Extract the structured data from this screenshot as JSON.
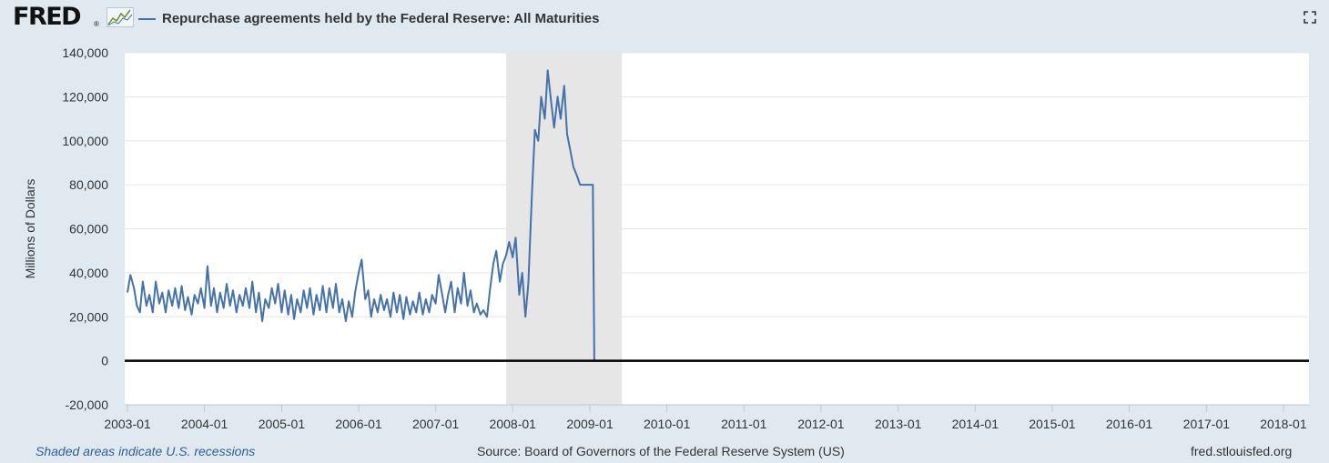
{
  "header": {
    "logo_text": "FRED",
    "logo_mark": "®",
    "logo_icon": "sparkline-icon",
    "title": "Repurchase agreements held by the Federal Reserve: All Maturities",
    "fullscreen_icon": "fullscreen-icon"
  },
  "footer": {
    "recession_note": "Shaded areas indicate U.S. recessions",
    "source": "Source: Board of Governors of the Federal Reserve System (US)",
    "site": "fred.stlouisfed.org"
  },
  "chart_data": {
    "type": "line",
    "title": "Repurchase agreements held by the Federal Reserve: All Maturities",
    "xlabel": "",
    "ylabel": "Millions of Dollars",
    "ylim": [
      -20000,
      140000
    ],
    "xlim": [
      "2002-12-19",
      "2018-05-02"
    ],
    "yticks": [
      -20000,
      0,
      20000,
      40000,
      60000,
      80000,
      100000,
      120000,
      140000
    ],
    "ytick_labels": [
      "-20,000",
      "0",
      "20,000",
      "40,000",
      "60,000",
      "80,000",
      "100,000",
      "120,000",
      "140,000"
    ],
    "xtick_labels": [
      "2003-01",
      "2004-01",
      "2005-01",
      "2006-01",
      "2007-01",
      "2008-01",
      "2009-01",
      "2010-01",
      "2011-01",
      "2012-01",
      "2013-01",
      "2014-01",
      "2015-01",
      "2016-01",
      "2017-01",
      "2018-01"
    ],
    "grid": true,
    "series_color": "#4572a7",
    "zero_line_color": "#000000",
    "recession_color": "#e6e6e6",
    "recessions": [
      {
        "start": "2007-12-01",
        "end": "2009-06-01"
      }
    ],
    "series": [
      {
        "name": "Repurchase agreements held by the Federal Reserve: All Maturities",
        "x": [
          "2003-01-01",
          "2003-01-15",
          "2003-02-01",
          "2003-02-15",
          "2003-03-01",
          "2003-03-15",
          "2003-04-01",
          "2003-04-15",
          "2003-05-01",
          "2003-05-15",
          "2003-06-01",
          "2003-06-15",
          "2003-07-01",
          "2003-07-15",
          "2003-08-01",
          "2003-08-15",
          "2003-09-01",
          "2003-09-15",
          "2003-10-01",
          "2003-10-15",
          "2003-11-01",
          "2003-11-15",
          "2003-12-01",
          "2003-12-15",
          "2004-01-01",
          "2004-01-15",
          "2004-02-01",
          "2004-02-15",
          "2004-03-01",
          "2004-03-15",
          "2004-04-01",
          "2004-04-15",
          "2004-05-01",
          "2004-05-15",
          "2004-06-01",
          "2004-06-15",
          "2004-07-01",
          "2004-07-15",
          "2004-08-01",
          "2004-08-15",
          "2004-09-01",
          "2004-09-15",
          "2004-10-01",
          "2004-10-15",
          "2004-11-01",
          "2004-11-15",
          "2004-12-01",
          "2004-12-15",
          "2005-01-01",
          "2005-01-15",
          "2005-02-01",
          "2005-02-15",
          "2005-03-01",
          "2005-03-15",
          "2005-04-01",
          "2005-04-15",
          "2005-05-01",
          "2005-05-15",
          "2005-06-01",
          "2005-06-15",
          "2005-07-01",
          "2005-07-15",
          "2005-08-01",
          "2005-08-15",
          "2005-09-01",
          "2005-09-15",
          "2005-10-01",
          "2005-10-15",
          "2005-11-01",
          "2005-11-15",
          "2005-12-01",
          "2005-12-15",
          "2006-01-01",
          "2006-01-15",
          "2006-02-01",
          "2006-02-15",
          "2006-03-01",
          "2006-03-15",
          "2006-04-01",
          "2006-04-15",
          "2006-05-01",
          "2006-05-15",
          "2006-06-01",
          "2006-06-15",
          "2006-07-01",
          "2006-07-15",
          "2006-08-01",
          "2006-08-15",
          "2006-09-01",
          "2006-09-15",
          "2006-10-01",
          "2006-10-15",
          "2006-11-01",
          "2006-11-15",
          "2006-12-01",
          "2006-12-15",
          "2007-01-01",
          "2007-01-15",
          "2007-02-01",
          "2007-02-15",
          "2007-03-01",
          "2007-03-15",
          "2007-04-01",
          "2007-04-15",
          "2007-05-01",
          "2007-05-15",
          "2007-06-01",
          "2007-06-15",
          "2007-07-01",
          "2007-07-15",
          "2007-08-01",
          "2007-08-15",
          "2007-09-01",
          "2007-09-15",
          "2007-10-01",
          "2007-10-15",
          "2007-11-01",
          "2007-11-15",
          "2007-12-01",
          "2007-12-15",
          "2008-01-01",
          "2008-01-15",
          "2008-02-01",
          "2008-02-15",
          "2008-03-01",
          "2008-03-15",
          "2008-04-01",
          "2008-04-15",
          "2008-05-01",
          "2008-05-15",
          "2008-06-01",
          "2008-06-15",
          "2008-07-01",
          "2008-07-15",
          "2008-08-01",
          "2008-08-15",
          "2008-09-01",
          "2008-09-15",
          "2008-10-01",
          "2008-10-15",
          "2008-11-01",
          "2008-11-15",
          "2008-12-01",
          "2008-12-15",
          "2009-01-01",
          "2009-01-15",
          "2009-01-22",
          "2018-04-25"
        ],
        "values": [
          31000,
          39000,
          33000,
          25000,
          22000,
          36000,
          25000,
          30000,
          22000,
          36000,
          26000,
          31000,
          22000,
          32000,
          25000,
          33000,
          24000,
          34000,
          23000,
          29000,
          21000,
          30000,
          26000,
          33000,
          24000,
          43000,
          25000,
          33000,
          22000,
          31000,
          24000,
          35000,
          25000,
          32000,
          22000,
          30000,
          25000,
          33000,
          24000,
          36000,
          22000,
          31000,
          18000,
          28000,
          24000,
          33000,
          26000,
          35000,
          22000,
          32000,
          21000,
          30000,
          19000,
          28000,
          22000,
          32000,
          24000,
          33000,
          21000,
          30000,
          23000,
          34000,
          22000,
          33000,
          24000,
          35000,
          22000,
          28000,
          18000,
          27000,
          20000,
          31000,
          40000,
          46000,
          28000,
          32000,
          20000,
          28000,
          22000,
          30000,
          23000,
          28000,
          20000,
          31000,
          22000,
          30000,
          19000,
          29000,
          21000,
          27000,
          22000,
          31000,
          21000,
          28000,
          22000,
          30000,
          26000,
          39000,
          30000,
          22000,
          30000,
          36000,
          22000,
          33000,
          26000,
          40000,
          25000,
          32000,
          22000,
          26000,
          21000,
          23000,
          20000,
          32000,
          44000,
          50000,
          36000,
          44000,
          48000,
          54000,
          47000,
          56000,
          30000,
          40000,
          20000,
          35000,
          75000,
          105000,
          100000,
          120000,
          110000,
          132000,
          118000,
          106000,
          120000,
          110000,
          125000,
          103000,
          95000,
          88000,
          84000,
          80000,
          80000,
          80000,
          80000,
          80000,
          0,
          0
        ]
      }
    ]
  }
}
